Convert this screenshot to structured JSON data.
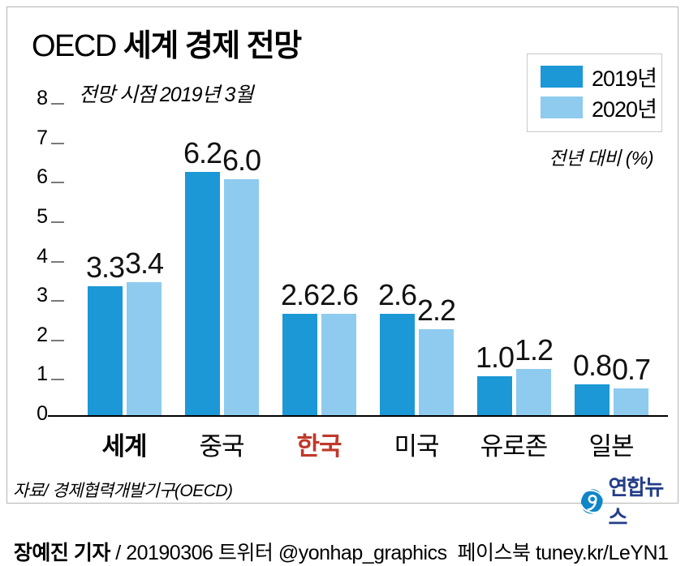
{
  "title": {
    "prefix": "OECD",
    "main": " 세계 경제 전망"
  },
  "subtitle": "전망 시점 2019년 3월",
  "legend": {
    "items": [
      {
        "label": "2019년",
        "color": "#1b98d5"
      },
      {
        "label": "2020년",
        "color": "#8ecbee"
      }
    ],
    "note": "전년 대비 (%)"
  },
  "chart_data": {
    "type": "bar",
    "title": "OECD 세계 경제 전망",
    "subtitle": "전망 시점 2019년 3월",
    "unit_note": "전년 대비 (%)",
    "categories": [
      "세계",
      "중국",
      "한국",
      "미국",
      "유로존",
      "일본"
    ],
    "series": [
      {
        "name": "2019년",
        "color": "#1b98d5",
        "values": [
          3.3,
          6.2,
          2.6,
          2.6,
          1.0,
          0.8
        ]
      },
      {
        "name": "2020년",
        "color": "#8ecbee",
        "values": [
          3.4,
          6.0,
          2.6,
          2.2,
          1.2,
          0.7
        ]
      }
    ],
    "ylim": [
      0,
      8
    ],
    "yticks": [
      0,
      1,
      2,
      3,
      4,
      5,
      6,
      7,
      8
    ],
    "grid": false,
    "legend_position": "top-right",
    "value_labels": true,
    "category_styles": {
      "세계": "bold",
      "한국": "highlight"
    },
    "highlight_color": "#c0392b",
    "axis_color": "#000000",
    "tick_mark_color": "#7a7a7a"
  },
  "source": "자료/ 경제협력개발기구(OECD)",
  "logo": {
    "text": "연합뉴스",
    "text_color": "#243e8a",
    "icon_color": "#0e86c8"
  },
  "footer": {
    "author": "장예진 기자",
    "rest": " / 20190306 트위터 @yonhap_graphics  페이스북 tuney.kr/LeYN1"
  }
}
